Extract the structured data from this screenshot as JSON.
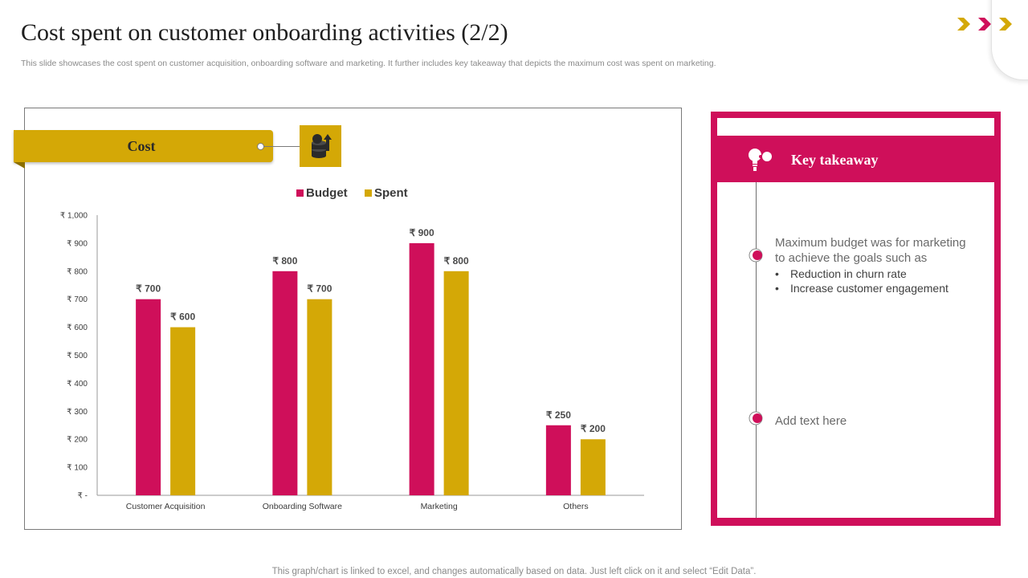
{
  "header": {
    "title": "Cost spent on customer onboarding activities (2/2)",
    "subtitle": "This slide showcases the cost spent on customer acquisition, onboarding software and marketing. It further includes key takeaway that depicts the maximum cost was spent on marketing."
  },
  "cost_panel": {
    "label": "Cost",
    "icon": "money-growth-icon"
  },
  "chart_data": {
    "type": "bar",
    "title": "",
    "xlabel": "",
    "ylabel": "",
    "categories": [
      "Customer Acquisition",
      "Onboarding Software",
      "Marketing",
      "Others"
    ],
    "series": [
      {
        "name": "Budget",
        "values": [
          700,
          800,
          900,
          250
        ],
        "color": "#cf0f5a",
        "labels": [
          "₹ 700",
          "₹ 800",
          "₹ 900",
          "₹ 250"
        ]
      },
      {
        "name": "Spent",
        "values": [
          600,
          700,
          800,
          200
        ],
        "color": "#d4a806",
        "labels": [
          "₹ 600",
          "₹ 700",
          "₹ 800",
          "₹ 200"
        ]
      }
    ],
    "ylim": [
      0,
      1000
    ],
    "yticks": [
      0,
      100,
      200,
      300,
      400,
      500,
      600,
      700,
      800,
      900,
      1000
    ],
    "ytick_labels": [
      "₹ -",
      "₹ 100",
      "₹ 200",
      "₹ 300",
      "₹ 400",
      "₹ 500",
      "₹ 600",
      "₹ 700",
      "₹ 800",
      "₹ 900",
      "₹ 1,000"
    ],
    "grid": false,
    "legend": "top-center"
  },
  "takeaway": {
    "header": "Key takeaway",
    "icon": "lightbulb-icon",
    "point1": {
      "text": "Maximum budget was for marketing to achieve the goals such as",
      "bullets": [
        "Reduction in churn rate",
        "Increase customer engagement"
      ]
    },
    "point2": {
      "text": "Add text here"
    }
  },
  "footnote": "This graph/chart is linked to excel, and changes automatically based on data. Just left click on it and select “Edit Data”.",
  "colors": {
    "magenta": "#cf0f5a",
    "gold": "#d4a806"
  }
}
